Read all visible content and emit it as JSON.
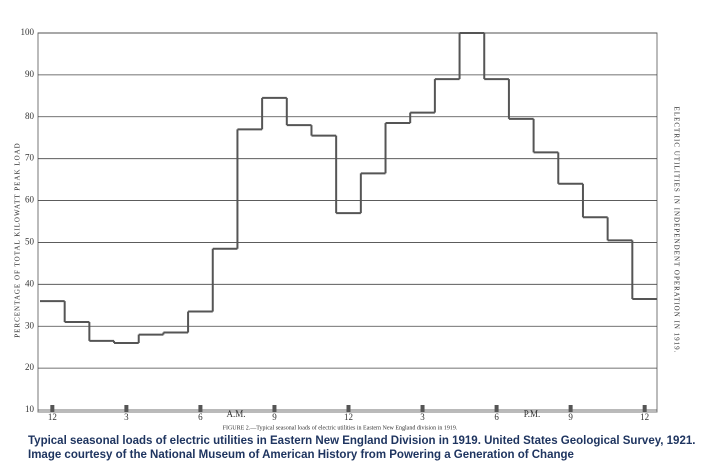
{
  "chart_data": {
    "type": "step",
    "y_label": "PERCENTAGE OF TOTAL KILOWATT PEAK LOAD",
    "side_title": "ELECTRIC UTILITIES IN INDEPENDENT OPERATION IN 1919.",
    "am_label": "A.M.",
    "pm_label": "P.M.",
    "figure_caption": "FIGURE 2.—Typical seasonal loads of electric utilities in Eastern New England division in 1919.",
    "x": [
      0,
      1,
      2,
      3,
      4,
      5,
      6,
      7,
      8,
      9,
      10,
      11,
      12,
      13,
      14,
      15,
      16,
      17,
      18,
      19,
      20,
      21,
      22,
      23,
      24
    ],
    "values": [
      36,
      31,
      26.5,
      26,
      28,
      28.5,
      33.5,
      48.5,
      77,
      84.5,
      78,
      75.5,
      57,
      66.5,
      78.5,
      81,
      89,
      100,
      89,
      79.5,
      71.5,
      64,
      56,
      50.5,
      36.5
    ],
    "color": "#555555",
    "xlim": [
      -0.5,
      24.5
    ],
    "xticks": [
      {
        "value": 0,
        "label": "12"
      },
      3,
      6,
      9,
      12,
      {
        "value": 15,
        "label": "3"
      },
      {
        "value": 18,
        "label": "6"
      },
      {
        "value": 21,
        "label": "9"
      },
      {
        "value": 24,
        "label": "12"
      }
    ],
    "ylim": [
      10,
      100
    ],
    "yticks": [
      10,
      20,
      30,
      40,
      50,
      60,
      70,
      80,
      90,
      100
    ],
    "grid": true
  },
  "caption": "Typical seasonal loads of electric utilities in Eastern New England Division in 1919. United States Geological Survey, 1921. Image courtesy of the National Museum of American History from Powering a Generation of Change"
}
